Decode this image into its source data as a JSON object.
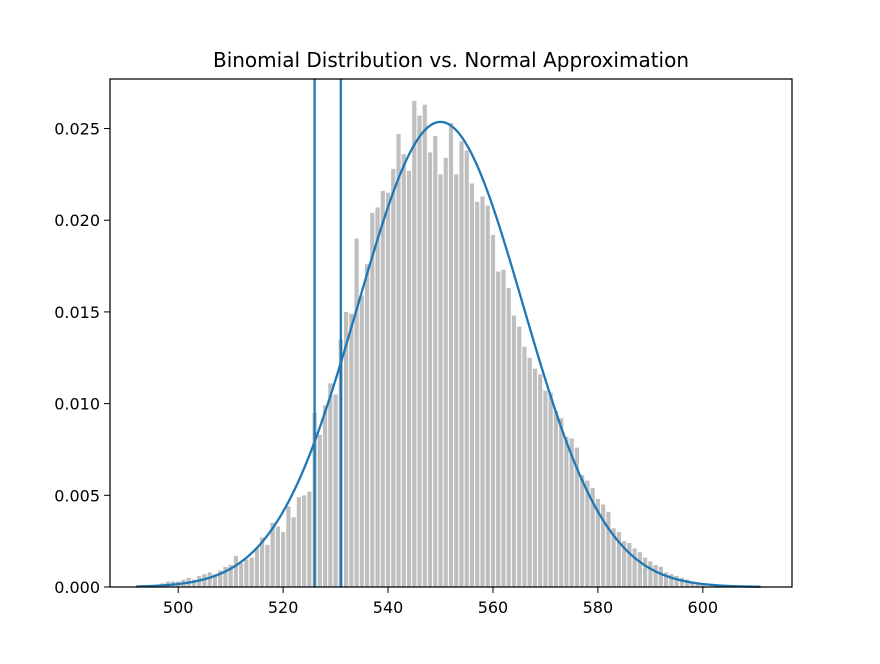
{
  "chart_data": {
    "type": "bar",
    "title": "Binomial Distribution vs. Normal Approximation",
    "xlabel": "",
    "ylabel": "",
    "xlim": [
      487,
      617
    ],
    "ylim": [
      0,
      0.0277
    ],
    "x_ticks": [
      500,
      520,
      540,
      560,
      580,
      600
    ],
    "x_tick_labels": [
      "500",
      "520",
      "540",
      "560",
      "580",
      "600"
    ],
    "y_ticks": [
      0,
      0.005,
      0.01,
      0.015,
      0.02,
      0.025
    ],
    "y_tick_labels": [
      "0.000",
      "0.005",
      "0.010",
      "0.015",
      "0.020",
      "0.025"
    ],
    "grid": false,
    "histogram": {
      "x": [
        497,
        498,
        499,
        500,
        501,
        502,
        503,
        504,
        505,
        506,
        507,
        508,
        509,
        510,
        511,
        512,
        513,
        514,
        515,
        516,
        517,
        518,
        519,
        520,
        521,
        522,
        523,
        524,
        525,
        526,
        527,
        528,
        529,
        530,
        531,
        532,
        533,
        534,
        535,
        536,
        537,
        538,
        539,
        540,
        541,
        542,
        543,
        544,
        545,
        546,
        547,
        548,
        549,
        550,
        551,
        552,
        553,
        554,
        555,
        556,
        557,
        558,
        559,
        560,
        561,
        562,
        563,
        564,
        565,
        566,
        567,
        568,
        569,
        570,
        571,
        572,
        573,
        574,
        575,
        576,
        577,
        578,
        579,
        580,
        581,
        582,
        583,
        584,
        585,
        586,
        587,
        588,
        589,
        590,
        591,
        592,
        593,
        594,
        595,
        596,
        597,
        598,
        599,
        600
      ],
      "values": [
        0.0002,
        0.0003,
        0.0003,
        0.0003,
        0.0004,
        0.0005,
        0.0004,
        0.0006,
        0.0007,
        0.0008,
        0.0007,
        0.0009,
        0.0011,
        0.0012,
        0.0017,
        0.0013,
        0.0015,
        0.0016,
        0.0021,
        0.0027,
        0.0023,
        0.0035,
        0.0033,
        0.003,
        0.0044,
        0.0038,
        0.0049,
        0.005,
        0.0052,
        0.0095,
        0.0083,
        0.0099,
        0.0111,
        0.0105,
        0.0135,
        0.015,
        0.0149,
        0.019,
        0.0159,
        0.0176,
        0.0204,
        0.0207,
        0.0216,
        0.0215,
        0.0228,
        0.0247,
        0.0236,
        0.0227,
        0.0265,
        0.0257,
        0.0263,
        0.0237,
        0.0246,
        0.0225,
        0.0234,
        0.0253,
        0.0225,
        0.0243,
        0.0238,
        0.022,
        0.021,
        0.0213,
        0.0208,
        0.0192,
        0.0172,
        0.0173,
        0.0163,
        0.0148,
        0.0142,
        0.0131,
        0.0125,
        0.0119,
        0.0116,
        0.0107,
        0.0106,
        0.0096,
        0.0092,
        0.0082,
        0.0081,
        0.0076,
        0.0061,
        0.0058,
        0.0054,
        0.0048,
        0.0045,
        0.0041,
        0.0032,
        0.003,
        0.0025,
        0.0024,
        0.0021,
        0.0019,
        0.0016,
        0.0014,
        0.0012,
        0.0011,
        0.0008,
        0.0007,
        0.0006,
        0.0005,
        0.0004,
        0.0003,
        0.0002,
        0.0002
      ],
      "color": "#bfbfbf"
    },
    "normal_curve": {
      "mean": 550,
      "std": 15.73,
      "x_range": [
        492,
        611
      ],
      "color": "#1f77b4"
    },
    "vertical_lines": [
      {
        "x": 526,
        "color": "#1f77b4"
      },
      {
        "x": 531,
        "color": "#1f77b4"
      }
    ]
  }
}
